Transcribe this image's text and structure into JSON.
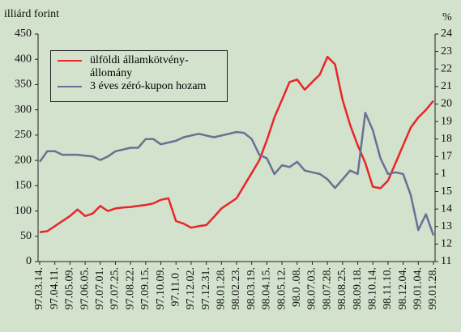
{
  "chart_data": {
    "type": "line",
    "y_label": "illiárd forint",
    "y2_label": "%",
    "categories": [
      "97.03.14.",
      null,
      "97.04.11.",
      null,
      "97.05.09.",
      null,
      "97.06.05.",
      null,
      "97.07.01.",
      null,
      "97.07.25.",
      null,
      "97.08.22.",
      null,
      "97.09.15.",
      null,
      "97.10.09.",
      null,
      "97.11.0 .",
      null,
      "97.12.02.",
      null,
      "97.12.31.",
      null,
      "98.01.28.",
      null,
      "98.02.23.",
      null,
      "98.03.19.",
      null,
      "98.04.15.",
      null,
      "98.05.12.",
      null,
      "98.0 .08.",
      null,
      "98.07.03.",
      null,
      "98.07.28.",
      null,
      "98.08.25.",
      null,
      "98.09.18.",
      null,
      "98.10.14.",
      null,
      "98.11.10.",
      null,
      "98.12.04.",
      null,
      "99.01.04.",
      null,
      "99.01.28."
    ],
    "series": [
      {
        "name": "ülföldi államkötvény-állomány",
        "color": "#e8262a",
        "axis": "y",
        "values": [
          58,
          60,
          70,
          80,
          90,
          103,
          90,
          95,
          110,
          100,
          105,
          107,
          108,
          110,
          112,
          115,
          122,
          125,
          80,
          75,
          67,
          70,
          72,
          88,
          105,
          115,
          125,
          150,
          175,
          200,
          240,
          285,
          320,
          355,
          360,
          340,
          355,
          370,
          405,
          390,
          320,
          270,
          230,
          195,
          148,
          145,
          160,
          195,
          230,
          265,
          285,
          300,
          318
        ]
      },
      {
        "name": "3 éves zéró-kupon hozam",
        "color": "#6b6f94",
        "axis": "y2",
        "values": [
          16.7,
          17.3,
          17.3,
          17.1,
          17.1,
          17.1,
          17.05,
          17.0,
          16.8,
          17.0,
          17.3,
          17.4,
          17.5,
          17.5,
          18.0,
          18.0,
          17.7,
          17.8,
          17.9,
          18.1,
          18.2,
          18.3,
          18.2,
          18.1,
          18.2,
          18.3,
          18.4,
          18.35,
          18.0,
          17.1,
          16.9,
          16.0,
          16.5,
          16.4,
          16.7,
          16.2,
          16.1,
          16.0,
          15.7,
          15.2,
          15.7,
          16.2,
          16.0,
          19.5,
          18.5,
          16.9,
          16.0,
          16.1,
          16.0,
          14.8,
          12.8,
          13.7,
          12.5
        ]
      }
    ],
    "ylim": [
      0,
      450
    ],
    "yticks": [
      0,
      50,
      100,
      150,
      200,
      250,
      300,
      350,
      400,
      450
    ],
    "y2lim": [
      11,
      24
    ],
    "y2ticks": [
      11,
      12,
      13,
      14,
      15,
      {
        "value": 16,
        "label": "1"
      },
      17,
      18,
      19,
      20,
      21,
      22,
      23,
      24
    ]
  }
}
